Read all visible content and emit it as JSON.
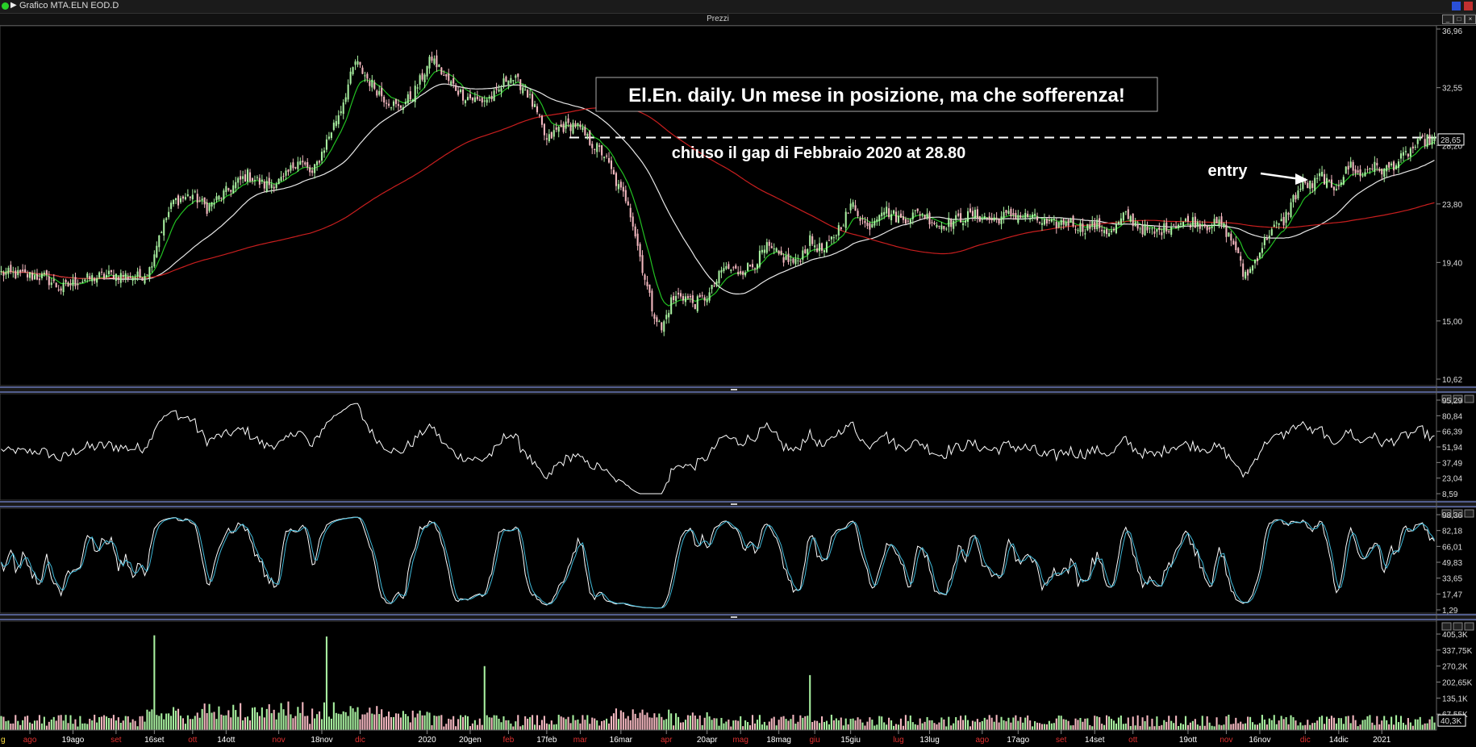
{
  "window": {
    "title": "Grafico MTA.ELN EOD.D",
    "panel_label": "Prezzi",
    "buttons": [
      "_",
      "□",
      "×"
    ]
  },
  "chart_data": [
    {
      "type": "candlestick",
      "panel": "Prezzi",
      "title": "El.En. daily. Un mese in posizione, ma che sofferenza!",
      "y_ticks": [
        "36,96",
        "32,55",
        "28,20",
        "23,80",
        "19,40",
        "15,00",
        "10,62"
      ],
      "last_price_label": "28,65",
      "annotations": [
        {
          "text": "chiuso il gap di Febbraio 2020 at 28.80",
          "level": 28.8
        },
        {
          "text": "entry"
        }
      ],
      "series": [
        {
          "name": "",
          "color": "#22c022",
          "kind": "short moving average"
        },
        {
          "name": "",
          "color": "#e8e8e8",
          "kind": "medium moving average"
        },
        {
          "name": "",
          "color": "#c81e1e",
          "kind": "long moving average"
        }
      ],
      "anchors": [
        {
          "i": 0,
          "v": 18.6
        },
        {
          "i": 18,
          "v": 18.3
        },
        {
          "i": 25,
          "v": 17.4
        },
        {
          "i": 32,
          "v": 18.0
        },
        {
          "i": 46,
          "v": 18.5
        },
        {
          "i": 58,
          "v": 18.3
        },
        {
          "i": 62,
          "v": 18.9
        },
        {
          "i": 66,
          "v": 21.5
        },
        {
          "i": 72,
          "v": 24.0
        },
        {
          "i": 80,
          "v": 24.5
        },
        {
          "i": 86,
          "v": 23.5
        },
        {
          "i": 96,
          "v": 25.0
        },
        {
          "i": 103,
          "v": 26.0
        },
        {
          "i": 110,
          "v": 25.2
        },
        {
          "i": 118,
          "v": 25.6
        },
        {
          "i": 124,
          "v": 27.2
        },
        {
          "i": 130,
          "v": 26.0
        },
        {
          "i": 136,
          "v": 28.5
        },
        {
          "i": 142,
          "v": 31.0
        },
        {
          "i": 148,
          "v": 34.5
        },
        {
          "i": 154,
          "v": 33.0
        },
        {
          "i": 160,
          "v": 31.8
        },
        {
          "i": 166,
          "v": 31.0
        },
        {
          "i": 172,
          "v": 32.0
        },
        {
          "i": 180,
          "v": 34.8
        },
        {
          "i": 186,
          "v": 33.2
        },
        {
          "i": 193,
          "v": 32.0
        },
        {
          "i": 200,
          "v": 31.5
        },
        {
          "i": 207,
          "v": 32.0
        },
        {
          "i": 212,
          "v": 33.5
        },
        {
          "i": 219,
          "v": 32.5
        },
        {
          "i": 224,
          "v": 30.5
        },
        {
          "i": 228,
          "v": 28.5
        },
        {
          "i": 233,
          "v": 29.5
        },
        {
          "i": 240,
          "v": 29.8
        },
        {
          "i": 246,
          "v": 28.5
        },
        {
          "i": 252,
          "v": 27.5
        },
        {
          "i": 258,
          "v": 25.0
        },
        {
          "i": 262,
          "v": 24.0
        },
        {
          "i": 265,
          "v": 21.5
        },
        {
          "i": 268,
          "v": 19.0
        },
        {
          "i": 272,
          "v": 16.0
        },
        {
          "i": 276,
          "v": 14.3
        },
        {
          "i": 280,
          "v": 16.5
        },
        {
          "i": 284,
          "v": 17.0
        },
        {
          "i": 290,
          "v": 16.3
        },
        {
          "i": 296,
          "v": 17.0
        },
        {
          "i": 302,
          "v": 19.0
        },
        {
          "i": 308,
          "v": 18.7
        },
        {
          "i": 314,
          "v": 19.2
        },
        {
          "i": 320,
          "v": 20.5
        },
        {
          "i": 326,
          "v": 19.8
        },
        {
          "i": 332,
          "v": 19.3
        },
        {
          "i": 338,
          "v": 21.0
        },
        {
          "i": 344,
          "v": 20.2
        },
        {
          "i": 350,
          "v": 22.0
        },
        {
          "i": 356,
          "v": 23.8
        },
        {
          "i": 362,
          "v": 22.0
        },
        {
          "i": 368,
          "v": 23.5
        },
        {
          "i": 376,
          "v": 22.6
        },
        {
          "i": 384,
          "v": 23.2
        },
        {
          "i": 392,
          "v": 22.2
        },
        {
          "i": 398,
          "v": 22.5
        },
        {
          "i": 406,
          "v": 23.0
        },
        {
          "i": 414,
          "v": 22.6
        },
        {
          "i": 422,
          "v": 23.0
        },
        {
          "i": 430,
          "v": 22.8
        },
        {
          "i": 438,
          "v": 22.2
        },
        {
          "i": 446,
          "v": 22.5
        },
        {
          "i": 452,
          "v": 22.0
        },
        {
          "i": 458,
          "v": 22.2
        },
        {
          "i": 464,
          "v": 21.6
        },
        {
          "i": 470,
          "v": 23.0
        },
        {
          "i": 476,
          "v": 22.0
        },
        {
          "i": 482,
          "v": 21.6
        },
        {
          "i": 490,
          "v": 22.3
        },
        {
          "i": 498,
          "v": 22.5
        },
        {
          "i": 504,
          "v": 22.2
        },
        {
          "i": 510,
          "v": 22.3
        },
        {
          "i": 516,
          "v": 20.5
        },
        {
          "i": 519,
          "v": 18.5
        },
        {
          "i": 522,
          "v": 18.8
        },
        {
          "i": 526,
          "v": 20.3
        },
        {
          "i": 530,
          "v": 21.7
        },
        {
          "i": 536,
          "v": 22.5
        },
        {
          "i": 540,
          "v": 24.2
        },
        {
          "i": 544,
          "v": 25.3
        },
        {
          "i": 548,
          "v": 25.2
        },
        {
          "i": 552,
          "v": 26.0
        },
        {
          "i": 556,
          "v": 24.8
        },
        {
          "i": 560,
          "v": 25.7
        },
        {
          "i": 564,
          "v": 26.8
        },
        {
          "i": 568,
          "v": 25.8
        },
        {
          "i": 572,
          "v": 26.7
        },
        {
          "i": 578,
          "v": 26.3
        },
        {
          "i": 584,
          "v": 27.0
        },
        {
          "i": 590,
          "v": 28.0
        },
        {
          "i": 595,
          "v": 28.6
        }
      ],
      "x_ticks": [
        {
          "label": "ago",
          "i": 12,
          "color": "#e03030"
        },
        {
          "label": "19ago",
          "i": 30,
          "color": "#ffffff"
        },
        {
          "label": "set",
          "i": 48,
          "color": "#e03030"
        },
        {
          "label": "16set",
          "i": 64,
          "color": "#ffffff"
        },
        {
          "label": "ott",
          "i": 80,
          "color": "#e03030"
        },
        {
          "label": "14ott",
          "i": 94,
          "color": "#ffffff"
        },
        {
          "label": "nov",
          "i": 116,
          "color": "#e03030"
        },
        {
          "label": "18nov",
          "i": 134,
          "color": "#ffffff"
        },
        {
          "label": "dic",
          "i": 150,
          "color": "#e03030"
        },
        {
          "label": "2020",
          "i": 178,
          "color": "#ffffff"
        },
        {
          "label": "20gen",
          "i": 196,
          "color": "#ffffff"
        },
        {
          "label": "feb",
          "i": 212,
          "color": "#e03030"
        },
        {
          "label": "17feb",
          "i": 228,
          "color": "#ffffff"
        },
        {
          "label": "mar",
          "i": 242,
          "color": "#e03030"
        },
        {
          "label": "16mar",
          "i": 259,
          "color": "#ffffff"
        },
        {
          "label": "apr",
          "i": 278,
          "color": "#e03030"
        },
        {
          "label": "20apr",
          "i": 295,
          "color": "#ffffff"
        },
        {
          "label": "mag",
          "i": 309,
          "color": "#e03030"
        },
        {
          "label": "18mag",
          "i": 325,
          "color": "#ffffff"
        },
        {
          "label": "giu",
          "i": 340,
          "color": "#e03030"
        },
        {
          "label": "15giu",
          "i": 355,
          "color": "#ffffff"
        },
        {
          "label": "lug",
          "i": 375,
          "color": "#e03030"
        },
        {
          "label": "13lug",
          "i": 388,
          "color": "#ffffff"
        },
        {
          "label": "ago",
          "i": 410,
          "color": "#e03030"
        },
        {
          "label": "17ago",
          "i": 425,
          "color": "#ffffff"
        },
        {
          "label": "set",
          "i": 443,
          "color": "#e03030"
        },
        {
          "label": "14set",
          "i": 457,
          "color": "#ffffff"
        },
        {
          "label": "ott",
          "i": 473,
          "color": "#e03030"
        },
        {
          "label": "19ott",
          "i": 496,
          "color": "#ffffff"
        },
        {
          "label": "nov",
          "i": 512,
          "color": "#e03030"
        },
        {
          "label": "16nov",
          "i": 526,
          "color": "#ffffff"
        },
        {
          "label": "dic",
          "i": 545,
          "color": "#e03030"
        },
        {
          "label": "14dic",
          "i": 559,
          "color": "#ffffff"
        },
        {
          "label": "2021",
          "i": 577,
          "color": "#ffffff"
        }
      ],
      "x_partial_first": "g"
    },
    {
      "type": "line",
      "panel": "oscillator 1",
      "y_ticks": [
        "95,29",
        "80,84",
        "66,39",
        "51,94",
        "37,49",
        "23,04",
        "8,59"
      ],
      "series": [
        {
          "name": "",
          "color": "#ffffff"
        }
      ]
    },
    {
      "type": "line",
      "panel": "stochastic",
      "y_ticks": [
        "98,36",
        "82,18",
        "66,01",
        "49,83",
        "33,65",
        "17,47",
        "1,29"
      ],
      "series": [
        {
          "name": "",
          "color": "#ffffff"
        },
        {
          "name": "",
          "color": "#3fb8d8"
        }
      ]
    },
    {
      "type": "bar",
      "panel": "volume",
      "y_ticks": [
        "405,3K",
        "337,75K",
        "270,2K",
        "202,65K",
        "135,1K",
        "67,55K"
      ],
      "last_value_label": "40,3K"
    }
  ]
}
